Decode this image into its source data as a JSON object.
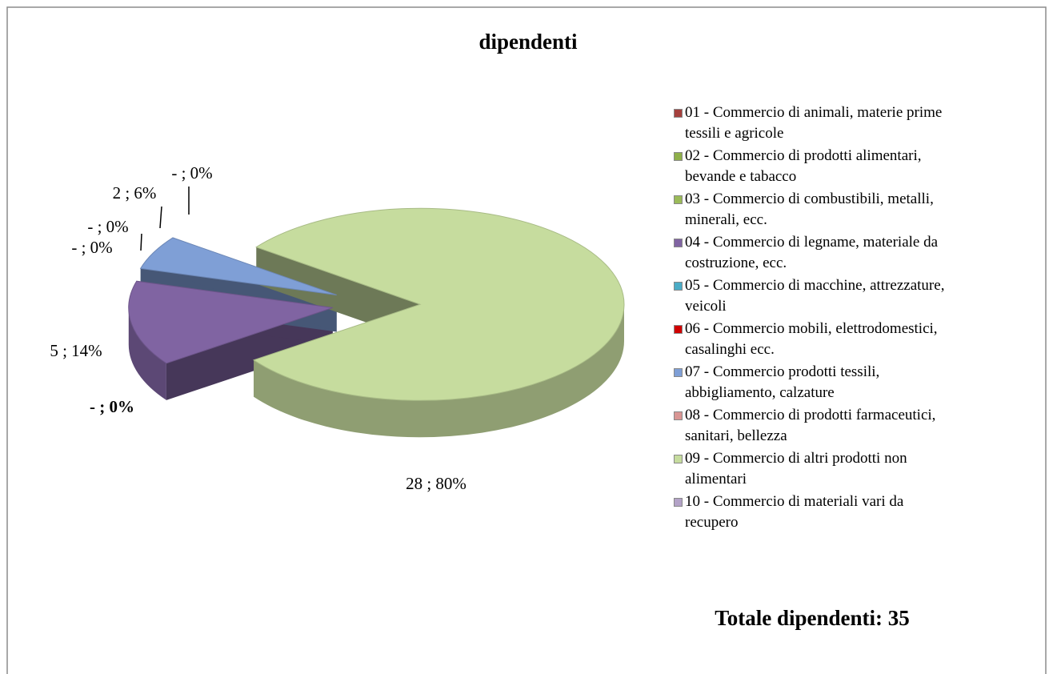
{
  "chart_data": {
    "type": "pie",
    "title": "dipendenti",
    "categories": [
      "01 - Commercio di animali, materie prime tessili e agricole",
      "02 - Commercio di prodotti alimentari, bevande e tabacco",
      "03 - Commercio di combustibili, metalli, minerali, ecc.",
      "04 - Commercio di legname, materiale da costruzione, ecc.",
      "05 - Commercio di macchine, attrezzature, veicoli",
      "06 - Commercio mobili, elettrodomestici, casalinghi ecc.",
      "07 - Commercio prodotti tessili, abbigliamento, calzature",
      "08 - Commercio di prodotti farmaceutici, sanitari, bellezza",
      "09 - Commercio di altri prodotti non alimentari",
      "10 - Commercio di materiali vari da recupero"
    ],
    "values": [
      0,
      0,
      0,
      5,
      0,
      0,
      2,
      0,
      28,
      0
    ],
    "value_labels": [
      null,
      null,
      null,
      "5 ; 14%",
      "- ; 0%",
      "- ; 0%",
      "2 ; 6%",
      "- ; 0%",
      "28 ; 80%",
      "- ; 0%"
    ],
    "colors": [
      "#a5403d",
      "#8fb04a",
      "#9bbb59",
      "#8064a2",
      "#4bacc6",
      "#d00000",
      "#7f9fd6",
      "#d99694",
      "#c6dc9e",
      "#b3a2c7"
    ],
    "annotation": "Totale dipendenti: 35",
    "legend": "right"
  }
}
